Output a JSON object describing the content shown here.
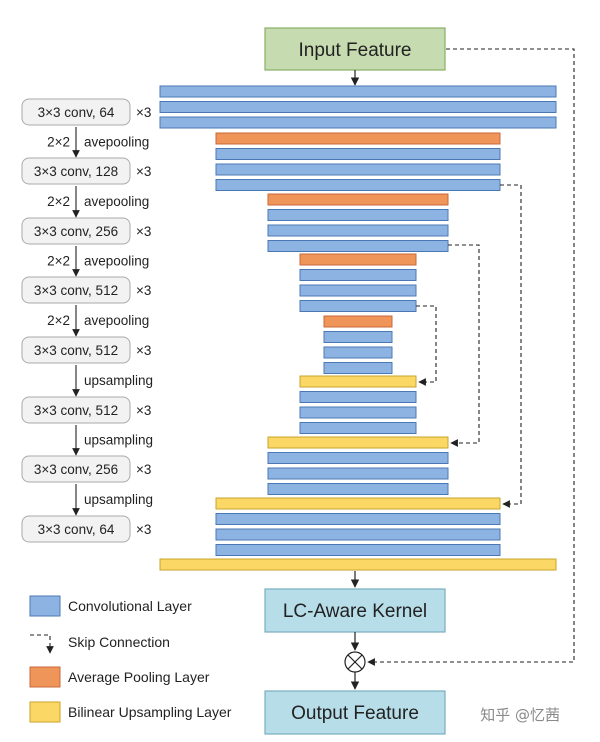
{
  "colors": {
    "conv_fill": "#8db3e2",
    "conv_stroke": "#4a78b5",
    "pool_fill": "#f0955a",
    "pool_stroke": "#c8683a",
    "up_fill": "#fbd866",
    "up_stroke": "#c9a42b",
    "green_box": "#c6dcb0",
    "green_stroke": "#8aae66",
    "blue_box": "#b7dde9",
    "blue_stroke": "#78aebf",
    "pill_fill": "#f2f2f2",
    "pill_stroke": "#aaaaaa"
  },
  "boxes": {
    "input": "Input Feature",
    "kernel": "LC-Aware Kernel",
    "output": "Output Feature"
  },
  "stages": [
    {
      "label": "3×3 conv, 64",
      "mult": "×3"
    },
    {
      "label": "3×3 conv, 128",
      "mult": "×3"
    },
    {
      "label": "3×3 conv, 256",
      "mult": "×3"
    },
    {
      "label": "3×3 conv, 512",
      "mult": "×3"
    },
    {
      "label": "3×3 conv, 512",
      "mult": "×3"
    },
    {
      "label": "3×3 conv, 512",
      "mult": "×3"
    },
    {
      "label": "3×3 conv, 256",
      "mult": "×3"
    },
    {
      "label": "3×3 conv, 64",
      "mult": "×3"
    }
  ],
  "transitions": [
    {
      "prefix": "2×2",
      "text": "avepooling"
    },
    {
      "prefix": "2×2",
      "text": "avepooling"
    },
    {
      "prefix": "2×2",
      "text": "avepooling"
    },
    {
      "prefix": "2×2",
      "text": "avepooling"
    },
    {
      "prefix": "",
      "text": "upsampling"
    },
    {
      "prefix": "",
      "text": "upsampling"
    },
    {
      "prefix": "",
      "text": "upsampling"
    }
  ],
  "legend": [
    {
      "type": "conv",
      "label": "Convolutional Layer"
    },
    {
      "type": "skip",
      "label": "Skip Connection"
    },
    {
      "type": "pool",
      "label": "Average Pooling Layer"
    },
    {
      "type": "up",
      "label": "Bilinear Upsampling Layer"
    }
  ],
  "watermark": "知乎 @忆茜",
  "operator_symbol": "⊗"
}
